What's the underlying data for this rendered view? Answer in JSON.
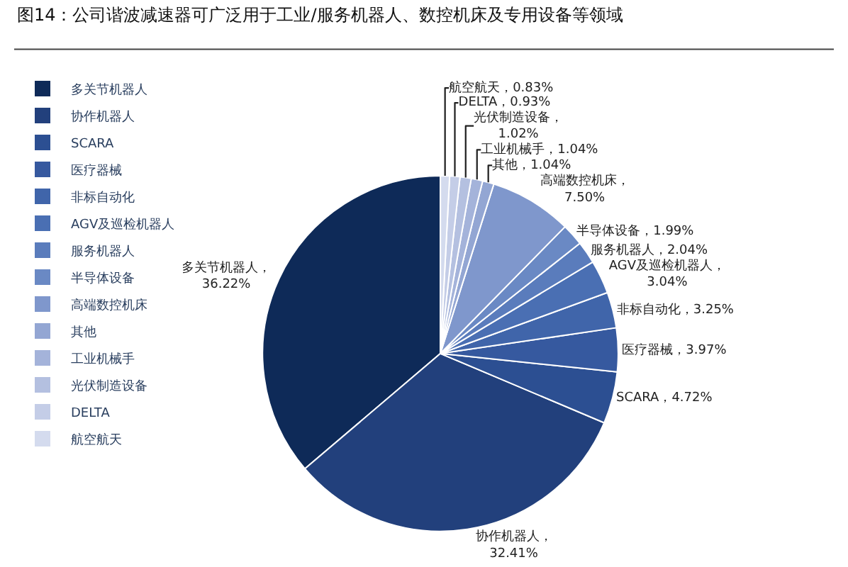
{
  "chart_data": {
    "type": "pie",
    "title": "图14：公司谐波减速器可广泛用于工业/服务机器人、数控机床及专用设备等领域",
    "categories": [
      "多关节机器人",
      "协作机器人",
      "SCARA",
      "医疗器械",
      "非标自动化",
      "AGV及巡检机器人",
      "服务机器人",
      "半导体设备",
      "高端数控机床",
      "其他",
      "工业机械手",
      "光伏制造设备",
      "DELTA",
      "航空航天"
    ],
    "values": [
      36.22,
      32.41,
      4.72,
      3.97,
      3.25,
      3.04,
      2.04,
      1.99,
      7.5,
      1.04,
      1.04,
      1.02,
      0.93,
      0.83
    ],
    "value_labels": [
      "多关节机器人，\n36.22%",
      "协作机器人，\n32.41%",
      "SCARA，4.72%",
      "医疗器械，3.97%",
      "非标自动化，3.25%",
      "AGV及巡检机器人，\n3.04%",
      "服务机器人，2.04%",
      "半导体设备，1.99%",
      "高端数控机床，\n7.50%",
      "其他，1.04%",
      "工业机械手，1.04%",
      "光伏制造设备，\n1.02%",
      "DELTA，0.93%",
      "航空航天，0.83%"
    ],
    "colors": [
      "#0e2a58",
      "#22407c",
      "#2c4f92",
      "#36599f",
      "#4065aa",
      "#4a6fb3",
      "#5a7cbc",
      "#6a89c4",
      "#7f97cc",
      "#93a6d3",
      "#a4b3da",
      "#b4c0e0",
      "#c4cde7",
      "#d4dbee"
    ],
    "legend": "left"
  }
}
